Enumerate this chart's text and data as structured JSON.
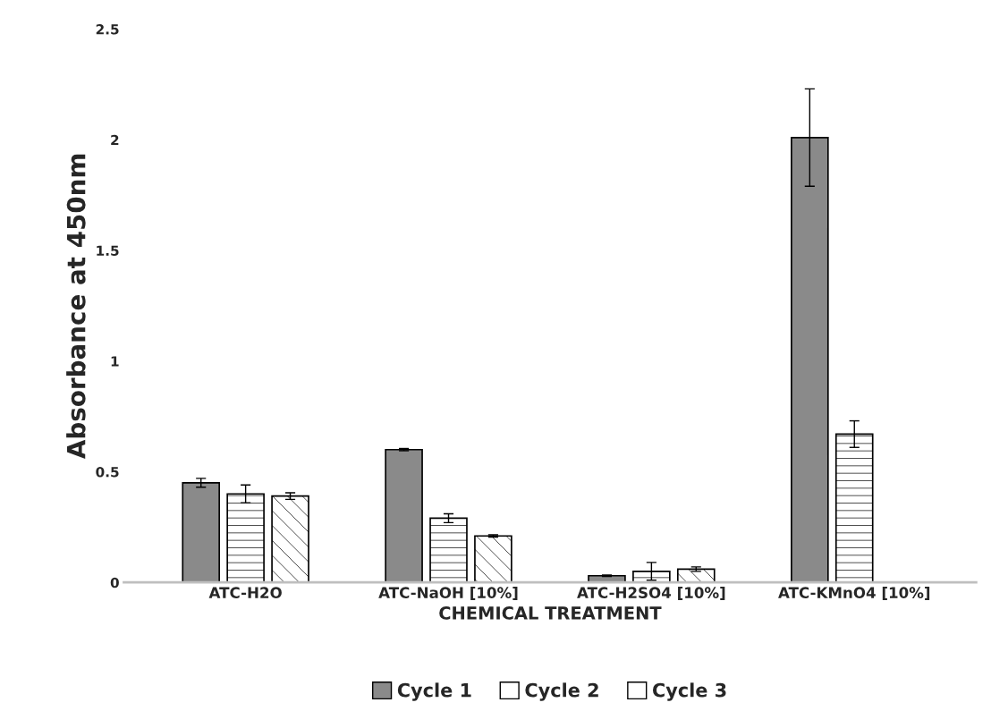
{
  "chart_data": {
    "type": "bar",
    "xlabel": "CHEMICAL TREATMENT",
    "ylabel": "Absorbance at 450nm",
    "categories": [
      "ATC-H2O",
      "ATC-NaOH [10%]",
      "ATC-H2SO4 [10%]",
      "ATC-KMnO4 [10%]"
    ],
    "series": [
      {
        "name": "Cycle 1",
        "color": "#8a8a8a",
        "values": [
          0.45,
          0.6,
          0.03,
          2.01
        ],
        "errors": [
          0.02,
          0.005,
          0.003,
          0.22
        ]
      },
      {
        "name": "Cycle 2",
        "color": "#ffffff",
        "values": [
          0.4,
          0.29,
          0.05,
          0.67
        ],
        "errors": [
          0.04,
          0.02,
          0.04,
          0.06
        ]
      },
      {
        "name": "Cycle 3",
        "color": "#ffffff",
        "values": [
          0.39,
          0.21,
          0.06,
          null
        ],
        "errors": [
          0.015,
          0.005,
          0.01,
          null
        ]
      }
    ],
    "ylim": [
      0,
      2.5
    ],
    "yticks": [
      0,
      0.5,
      1,
      1.5,
      2,
      2.5
    ],
    "grid": false,
    "legend": "bottom"
  }
}
